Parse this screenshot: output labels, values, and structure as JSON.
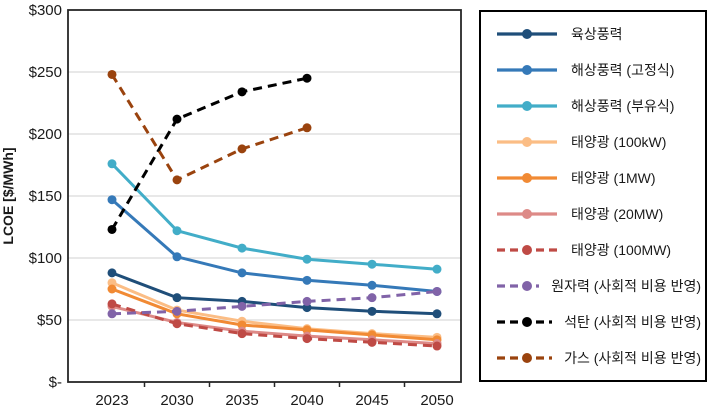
{
  "chart": {
    "y_axis_title": "LCOE [$/MWh]",
    "y_ticks": [
      {
        "label": "$300",
        "value": 300
      },
      {
        "label": "$250",
        "value": 250
      },
      {
        "label": "$200",
        "value": 200
      },
      {
        "label": "$150",
        "value": 150
      },
      {
        "label": "$100",
        "value": 100
      },
      {
        "label": "$50",
        "value": 50
      },
      {
        "label": "$-",
        "value": 0
      }
    ]
  },
  "chart_data": {
    "type": "line",
    "title": "",
    "xlabel": "",
    "ylabel": "LCOE [$/MWh]",
    "ylim": [
      0,
      300
    ],
    "grid": true,
    "legend_position": "right",
    "categories": [
      "2023",
      "2030",
      "2035",
      "2040",
      "2045",
      "2050"
    ],
    "series": [
      {
        "name": "육상풍력",
        "key": "onshore-wind",
        "color": "#1f4e79",
        "style": "solid",
        "values": [
          88,
          68,
          65,
          60,
          57,
          55
        ]
      },
      {
        "name": "해상풍력 (고정식)",
        "key": "offshore-wind-fixed",
        "color": "#3579b8",
        "style": "solid",
        "values": [
          147,
          101,
          88,
          82,
          78,
          73
        ]
      },
      {
        "name": "해상풍력 (부유식)",
        "key": "offshore-wind-floating",
        "color": "#42adc8",
        "style": "solid",
        "values": [
          176,
          122,
          108,
          99,
          95,
          91
        ]
      },
      {
        "name": "태양광 (100kW)",
        "key": "solar-100kw",
        "color": "#fbbd85",
        "style": "solid",
        "values": [
          80,
          58,
          49,
          43,
          39,
          36
        ]
      },
      {
        "name": "태양광 (1MW)",
        "key": "solar-1mw",
        "color": "#f18a34",
        "style": "solid",
        "values": [
          75,
          55,
          46,
          42,
          38,
          34
        ]
      },
      {
        "name": "태양광 (20MW)",
        "key": "solar-20mw",
        "color": "#dd8a87",
        "style": "solid",
        "values": [
          61,
          48,
          41,
          37,
          34,
          31
        ]
      },
      {
        "name": "태양광 (100MW)",
        "key": "solar-100mw",
        "color": "#bf4a45",
        "style": "dashed",
        "values": [
          63,
          47,
          39,
          35,
          32,
          29
        ]
      },
      {
        "name": "원자력 (사회적 비용 반영)",
        "key": "nuclear-social-cost",
        "color": "#8163a8",
        "style": "dashed",
        "values": [
          55,
          57,
          61,
          65,
          68,
          73
        ]
      },
      {
        "name": "석탄 (사회적 비용 반영)",
        "key": "coal-social-cost",
        "color": "#000000",
        "style": "dashed",
        "values": [
          123,
          212,
          234,
          245,
          null,
          null
        ]
      },
      {
        "name": "가스 (사회적 비용 반영)",
        "key": "gas-social-cost",
        "color": "#9a430e",
        "style": "dashed",
        "values": [
          248,
          163,
          188,
          205,
          null,
          null
        ]
      }
    ]
  }
}
